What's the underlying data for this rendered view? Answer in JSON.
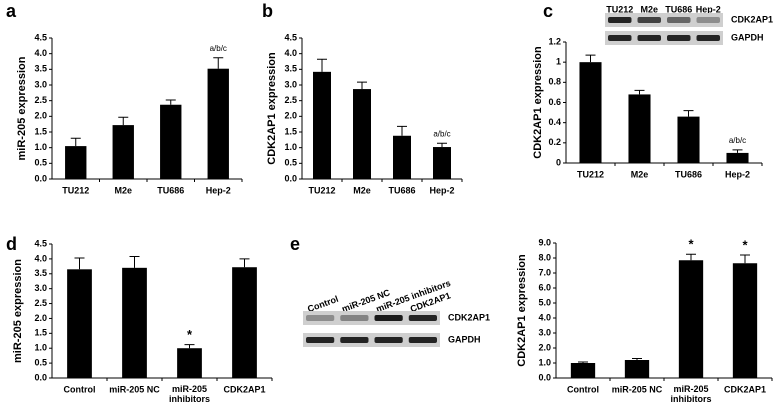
{
  "chart_data": [
    {
      "type": "bar",
      "panel_label": "a",
      "ylabel": "miR-205 expression",
      "color": "#000000",
      "categories": [
        "TU212",
        "M2e",
        "TU686",
        "Hep-2"
      ],
      "values": [
        1.05,
        1.72,
        2.37,
        3.52
      ],
      "errors": [
        0.25,
        0.25,
        0.15,
        0.35
      ],
      "annotations": [
        null,
        null,
        null,
        "a/b/c"
      ],
      "ylim": [
        0,
        4.5
      ],
      "yticks": [
        {
          "value": 0,
          "label": "0.0"
        },
        0.5,
        {
          "value": 1,
          "label": "1.0"
        },
        1.5,
        {
          "value": 2,
          "label": "2.0"
        },
        2.5,
        {
          "value": 3,
          "label": "3.0"
        },
        3.5,
        {
          "value": 4,
          "label": "4.0"
        },
        4.5
      ]
    },
    {
      "type": "bar",
      "panel_label": "b",
      "ylabel": "CDK2AP1 expression",
      "color": "#000000",
      "categories": [
        "TU212",
        "M2e",
        "TU686",
        "Hep-2"
      ],
      "values": [
        3.42,
        2.87,
        1.38,
        1.02
      ],
      "errors": [
        0.4,
        0.22,
        0.3,
        0.12
      ],
      "annotations": [
        null,
        null,
        null,
        "a/b/c"
      ],
      "ylim": [
        0,
        4.5
      ],
      "yticks": [
        {
          "value": 0,
          "label": "0.0"
        },
        0.5,
        {
          "value": 1,
          "label": "1.0"
        },
        1.5,
        {
          "value": 2,
          "label": "2.0"
        },
        2.5,
        {
          "value": 3,
          "label": "3.0"
        },
        3.5,
        {
          "value": 4,
          "label": "4.0"
        },
        4.5
      ]
    },
    {
      "type": "bar",
      "panel_label": "c",
      "ylabel": "CDK2AP1 expression",
      "color": "#000000",
      "categories": [
        "TU212",
        "M2e",
        "TU686",
        "Hep-2"
      ],
      "values": [
        1.0,
        0.68,
        0.46,
        0.1
      ],
      "errors": [
        0.07,
        0.04,
        0.06,
        0.03
      ],
      "annotations": [
        null,
        null,
        null,
        "a/b/c"
      ],
      "ylim": [
        0,
        1.2
      ],
      "yticks": [
        0,
        0.2,
        0.4,
        0.6,
        0.8,
        1,
        1.2
      ],
      "blot": {
        "lanes": [
          "TU212",
          "M2e",
          "TU686",
          "Hep-2"
        ],
        "rows": [
          "CDK2AP1",
          "GAPDH"
        ]
      }
    },
    {
      "type": "bar",
      "panel_label": "d",
      "ylabel": "miR-205 expression",
      "color": "#000000",
      "categories": [
        "Control",
        "miR-205 NC",
        "miR-205\ninhibitors",
        "CDK2AP1"
      ],
      "values": [
        3.65,
        3.7,
        1.0,
        3.72
      ],
      "errors": [
        0.38,
        0.38,
        0.12,
        0.28
      ],
      "annotations": [
        null,
        null,
        "*",
        null
      ],
      "ylim": [
        0,
        4.5
      ],
      "yticks": [
        {
          "value": 0,
          "label": "0.0"
        },
        0.5,
        {
          "value": 1,
          "label": "1.0"
        },
        1.5,
        {
          "value": 2,
          "label": "2.0"
        },
        2.5,
        {
          "value": 3,
          "label": "3.0"
        },
        3.5,
        {
          "value": 4,
          "label": "4.0"
        },
        4.5
      ]
    },
    {
      "type": "bar",
      "panel_label": "e",
      "ylabel": "CDK2AP1 expression",
      "color": "#000000",
      "categories": [
        "Control",
        "miR-205 NC",
        "miR-205\ninhibitors",
        "CDK2AP1"
      ],
      "values": [
        1.0,
        1.2,
        7.85,
        7.65
      ],
      "errors": [
        0.07,
        0.1,
        0.4,
        0.55
      ],
      "annotations": [
        null,
        null,
        "*",
        "*"
      ],
      "ylim": [
        0,
        9
      ],
      "yticks": [
        {
          "value": 0,
          "label": "0.0"
        },
        {
          "value": 1,
          "label": "1.0"
        },
        {
          "value": 2,
          "label": "2.0"
        },
        {
          "value": 3,
          "label": "3.0"
        },
        {
          "value": 4,
          "label": "4.0"
        },
        {
          "value": 5,
          "label": "5.0"
        },
        {
          "value": 6,
          "label": "6.0"
        },
        {
          "value": 7,
          "label": "7.0"
        },
        {
          "value": 8,
          "label": "8.0"
        },
        {
          "value": 9,
          "label": "9.0"
        }
      ],
      "blot": {
        "lanes": [
          "Control",
          "miR-205 NC",
          "miR-205 inhibitors",
          "CDK2AP1"
        ],
        "rows": [
          "CDK2AP1",
          "GAPDH"
        ]
      }
    }
  ]
}
